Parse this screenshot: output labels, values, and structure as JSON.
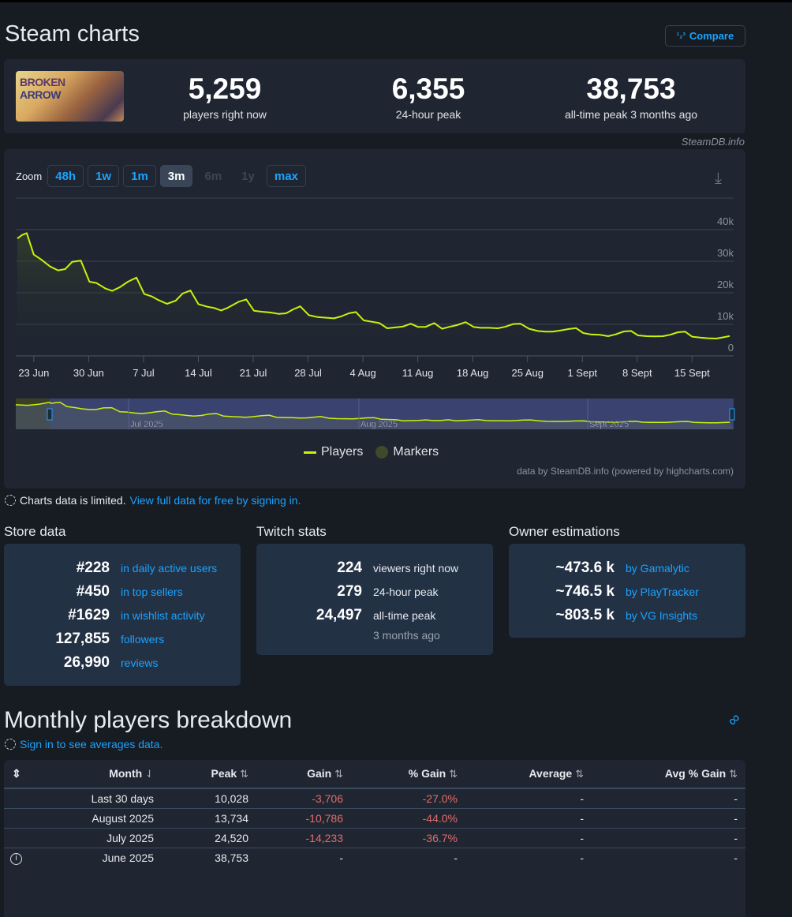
{
  "header": {
    "title": "Steam charts",
    "compare_icon": "1/2/3",
    "compare_label": "Compare"
  },
  "game": {
    "cover_line1": "BROKEN",
    "cover_line2": "ARROW"
  },
  "stats": [
    {
      "value": "5,259",
      "label": "players right now"
    },
    {
      "value": "6,355",
      "label": "24-hour peak"
    },
    {
      "value": "38,753",
      "label": "all-time peak 3 months ago"
    }
  ],
  "credit": "SteamDB.info",
  "zoom": {
    "label": "Zoom",
    "buttons": [
      "48h",
      "1w",
      "1m",
      "3m",
      "6m",
      "1y",
      "max"
    ],
    "active": "3m",
    "disabled": [
      "6m",
      "1y"
    ]
  },
  "chart_data": {
    "type": "line",
    "title": "",
    "xlabel": "",
    "ylabel": "Players",
    "x_unit": "days since 23 Jun 2025",
    "xlim": [
      -2.3,
      89.3
    ],
    "ylim": [
      0,
      40000
    ],
    "y_ticks": [
      {
        "v": 0,
        "label": "0"
      },
      {
        "v": 10000,
        "label": "10k"
      },
      {
        "v": 20000,
        "label": "20k"
      },
      {
        "v": 30000,
        "label": "30k"
      },
      {
        "v": 40000,
        "label": "40k"
      }
    ],
    "x_ticks": [
      {
        "v": 0,
        "label": "23 Jun"
      },
      {
        "v": 7,
        "label": "30 Jun"
      },
      {
        "v": 14,
        "label": "7 Jul"
      },
      {
        "v": 21,
        "label": "14 Jul"
      },
      {
        "v": 28,
        "label": "21 Jul"
      },
      {
        "v": 35,
        "label": "28 Jul"
      },
      {
        "v": 42,
        "label": "4 Aug"
      },
      {
        "v": 49,
        "label": "11 Aug"
      },
      {
        "v": 56,
        "label": "18 Aug"
      },
      {
        "v": 63,
        "label": "25 Aug"
      },
      {
        "v": 70,
        "label": "1 Sept"
      },
      {
        "v": 77,
        "label": "8 Sept"
      },
      {
        "v": 84,
        "label": "15 Sept"
      }
    ],
    "color": "#c8f20c",
    "series": [
      {
        "name": "Players",
        "points": [
          [
            -2.1,
            37200
          ],
          [
            -1.5,
            38300
          ],
          [
            -0.9,
            38900
          ],
          [
            0,
            32100
          ],
          [
            0.9,
            30600
          ],
          [
            2.1,
            28300
          ],
          [
            3.1,
            27100
          ],
          [
            4,
            27500
          ],
          [
            4.9,
            29800
          ],
          [
            6,
            30200
          ],
          [
            7.1,
            23500
          ],
          [
            8,
            23100
          ],
          [
            9.1,
            21400
          ],
          [
            10,
            20600
          ],
          [
            11,
            21800
          ],
          [
            12,
            23500
          ],
          [
            13.1,
            24800
          ],
          [
            14.1,
            19600
          ],
          [
            15,
            18900
          ],
          [
            15.9,
            17700
          ],
          [
            17,
            16500
          ],
          [
            18.1,
            17500
          ],
          [
            19,
            19800
          ],
          [
            20,
            20700
          ],
          [
            21,
            16400
          ],
          [
            22.1,
            15600
          ],
          [
            23,
            15200
          ],
          [
            23.9,
            14400
          ],
          [
            24.8,
            15300
          ],
          [
            26.1,
            17100
          ],
          [
            27.1,
            17900
          ],
          [
            28.1,
            14300
          ],
          [
            29.1,
            14000
          ],
          [
            30.2,
            13750
          ],
          [
            31.3,
            13300
          ],
          [
            32.2,
            13500
          ],
          [
            33.1,
            14750
          ],
          [
            34,
            15700
          ],
          [
            35.1,
            12900
          ],
          [
            36.2,
            12300
          ],
          [
            37.3,
            12100
          ],
          [
            38.3,
            11900
          ],
          [
            39.2,
            12500
          ],
          [
            40.2,
            13500
          ],
          [
            41.1,
            13900
          ],
          [
            42.1,
            11250
          ],
          [
            43.2,
            10800
          ],
          [
            44.1,
            10400
          ],
          [
            45.1,
            8750
          ],
          [
            46,
            9000
          ],
          [
            47.1,
            9300
          ],
          [
            48.1,
            10200
          ],
          [
            49,
            9200
          ],
          [
            50,
            9200
          ],
          [
            51.1,
            10400
          ],
          [
            52.1,
            8600
          ],
          [
            53,
            9200
          ],
          [
            54,
            9750
          ],
          [
            55.1,
            10700
          ],
          [
            56.1,
            9200
          ],
          [
            57,
            8900
          ],
          [
            58.1,
            8900
          ],
          [
            59.2,
            8750
          ],
          [
            60.1,
            9200
          ],
          [
            61.2,
            10100
          ],
          [
            62.1,
            10200
          ],
          [
            63.2,
            8600
          ],
          [
            64.3,
            7900
          ],
          [
            65.3,
            7700
          ],
          [
            66.2,
            7700
          ],
          [
            67.3,
            8100
          ],
          [
            68.2,
            8500
          ],
          [
            69.2,
            8800
          ],
          [
            70.1,
            7250
          ],
          [
            71.1,
            6800
          ],
          [
            72.2,
            6700
          ],
          [
            73.3,
            6250
          ],
          [
            74.2,
            6800
          ],
          [
            75.3,
            7750
          ],
          [
            76.2,
            7900
          ],
          [
            77.1,
            6500
          ],
          [
            78.2,
            6250
          ],
          [
            79.2,
            6200
          ],
          [
            80.3,
            6250
          ],
          [
            81.2,
            6700
          ],
          [
            82.2,
            7500
          ],
          [
            83.1,
            7700
          ],
          [
            84,
            6100
          ],
          [
            85,
            5800
          ],
          [
            86,
            5600
          ],
          [
            87.1,
            5500
          ],
          [
            88,
            5900
          ],
          [
            88.8,
            6300
          ]
        ]
      }
    ],
    "navigator_labels": [
      "Jul 2025",
      "Aug 2025",
      "Sept 2025"
    ],
    "legend": [
      "Players",
      "Markers"
    ],
    "legend_placement": "bottom-center",
    "credits": "data by SteamDB.info (powered by highcharts.com)"
  },
  "notice": {
    "text": "Charts data is limited.",
    "link": "View full data for free by signing in."
  },
  "store": {
    "title": "Store data",
    "rows": [
      {
        "value": "#228",
        "label": "in daily active users"
      },
      {
        "value": "#450",
        "label": "in top sellers"
      },
      {
        "value": "#1629",
        "label": "in wishlist activity"
      },
      {
        "value": "127,855",
        "label": "followers"
      },
      {
        "value": "26,990",
        "label": "reviews"
      }
    ]
  },
  "twitch": {
    "title": "Twitch stats",
    "rows": [
      {
        "value": "224",
        "label": "viewers right now"
      },
      {
        "value": "279",
        "label": "24-hour peak"
      },
      {
        "value": "24,497",
        "label": "all-time peak"
      }
    ],
    "sub": "3 months ago"
  },
  "owners": {
    "title": "Owner estimations",
    "rows": [
      {
        "value": "~473.6 k",
        "label": "by Gamalytic"
      },
      {
        "value": "~746.5 k",
        "label": "by PlayTracker"
      },
      {
        "value": "~803.5 k",
        "label": "by VG Insights"
      }
    ]
  },
  "monthly": {
    "title": "Monthly players breakdown",
    "signin": "Sign in to see averages data.",
    "columns": [
      "Month",
      "Peak",
      "Gain",
      "% Gain",
      "Average",
      "Avg % Gain"
    ],
    "rows": [
      [
        "Last 30 days",
        "10,028",
        "-3,706",
        "-27.0%",
        "-",
        "-"
      ],
      [
        "August 2025",
        "13,734",
        "-10,786",
        "-44.0%",
        "-",
        "-"
      ],
      [
        "July 2025",
        "24,520",
        "-14,233",
        "-36.7%",
        "-",
        "-"
      ],
      [
        "June 2025",
        "38,753",
        "-",
        "-",
        "-",
        "-"
      ]
    ]
  }
}
